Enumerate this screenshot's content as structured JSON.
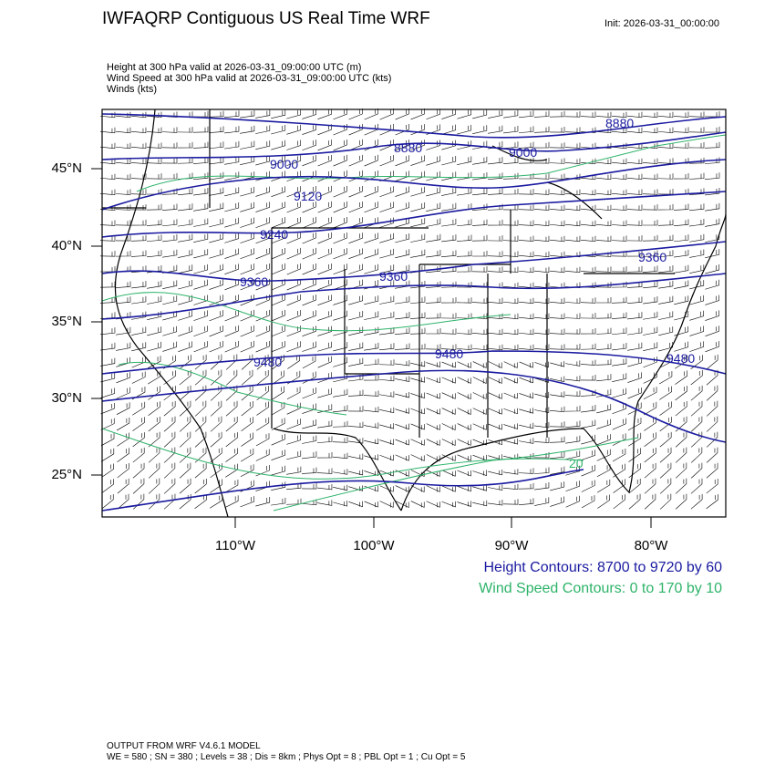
{
  "title": "IWFAQRP Contiguous US Real Time WRF",
  "init": "Init: 2026-03-31_00:00:00",
  "subtitles": [
    "Height at 300 hPa valid at 2026-03-31_09:00:00 UTC   (m)",
    "Wind Speed at 300 hPa valid at 2026-03-31_09:00:00 UTC   (kts)",
    "Winds   (kts)"
  ],
  "lat_labels": [
    "45°N",
    "40°N",
    "35°N",
    "30°N",
    "25°N"
  ],
  "lon_labels": [
    "110°W",
    "100°W",
    "90°W",
    "80°W"
  ],
  "height_labels": [
    "8880",
    "8880",
    "9000",
    "9000",
    "9120",
    "9240",
    "9360",
    "9360",
    "9360",
    "9480",
    "9480",
    "9480"
  ],
  "speed_labels": [
    "20"
  ],
  "legend": {
    "height": "Height Contours: 8700 to 9720 by 60",
    "wind": "Wind Speed Contours: 0 to 170 by 10"
  },
  "colors": {
    "height": "#1a1aa0",
    "wind": "#2eb36a",
    "barbs": "#000000"
  },
  "footer": [
    "OUTPUT FROM WRF V4.6.1 MODEL",
    "WE = 580 ; SN = 380 ; Levels = 38 ; Dis = 8km ; Phys Opt = 8 ; PBL Opt = 1 ; Cu Opt = 5"
  ]
}
